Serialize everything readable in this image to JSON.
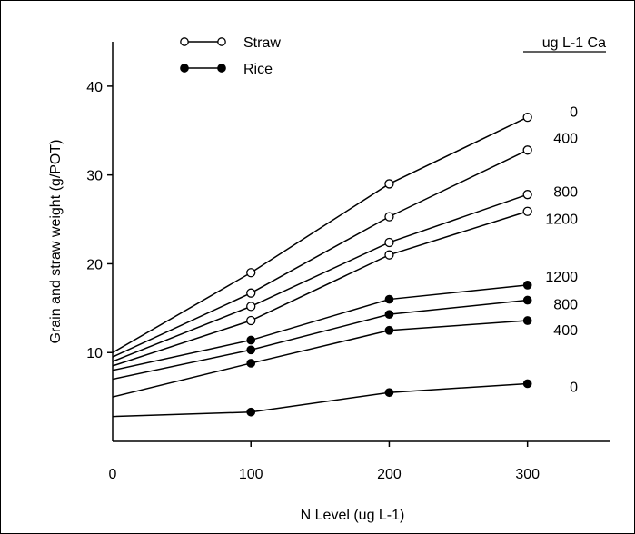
{
  "chart_data": {
    "type": "line",
    "title": "",
    "xlabel": "N Level (ug L-1)",
    "ylabel": "Grain and straw weight (g/POT)",
    "xlim": [
      0,
      360
    ],
    "ylim": [
      0,
      45
    ],
    "x_ticks": [
      "0",
      "100",
      "200",
      "300"
    ],
    "y_ticks": [
      "10",
      "20",
      "30",
      "40"
    ],
    "grid": false,
    "legend_position": "top-left",
    "legend": [
      {
        "name": "Straw",
        "marker": "open-circle"
      },
      {
        "name": "Rice",
        "marker": "filled-circle"
      }
    ],
    "group_header": "ug L-1 Ca",
    "x": [
      0,
      100,
      200,
      300
    ],
    "series": [
      {
        "name": "0",
        "group": "Straw",
        "marker": "open",
        "values": [
          10,
          19,
          29,
          36.5
        ],
        "shown_points": [
          1,
          2,
          3
        ]
      },
      {
        "name": "400",
        "group": "Straw",
        "marker": "open",
        "values": [
          9.5,
          16.7,
          25.3,
          32.8
        ],
        "shown_points": [
          1,
          2,
          3
        ]
      },
      {
        "name": "800",
        "group": "Straw",
        "marker": "open",
        "values": [
          9,
          15.2,
          22.4,
          27.8
        ],
        "shown_points": [
          1,
          2,
          3
        ]
      },
      {
        "name": "1200",
        "group": "Straw",
        "marker": "open",
        "values": [
          8.5,
          13.6,
          21.0,
          25.9
        ],
        "shown_points": [
          1,
          2,
          3
        ]
      },
      {
        "name": "1200",
        "group": "Rice",
        "marker": "filled",
        "values": [
          8,
          11.4,
          16.0,
          17.6
        ],
        "shown_points": [
          1,
          2,
          3
        ]
      },
      {
        "name": "800",
        "group": "Rice",
        "marker": "filled",
        "values": [
          7,
          10.3,
          14.3,
          15.9
        ],
        "shown_points": [
          1,
          2,
          3
        ]
      },
      {
        "name": "400",
        "group": "Rice",
        "marker": "filled",
        "values": [
          5,
          8.8,
          12.5,
          13.6
        ],
        "shown_points": [
          1,
          2,
          3
        ]
      },
      {
        "name": "0",
        "group": "Rice",
        "marker": "filled",
        "values": [
          2.8,
          3.3,
          5.5,
          6.5
        ],
        "shown_points": [
          1,
          2,
          3
        ]
      }
    ],
    "level_labels": [
      {
        "text": "0",
        "y": 37.2
      },
      {
        "text": "400",
        "y": 34.2
      },
      {
        "text": "800",
        "y": 28.2
      },
      {
        "text": "1200",
        "y": 25.1
      },
      {
        "text": "1200",
        "y": 18.6
      },
      {
        "text": "800",
        "y": 15.5
      },
      {
        "text": "400",
        "y": 12.6
      },
      {
        "text": "0",
        "y": 6.2
      }
    ]
  }
}
